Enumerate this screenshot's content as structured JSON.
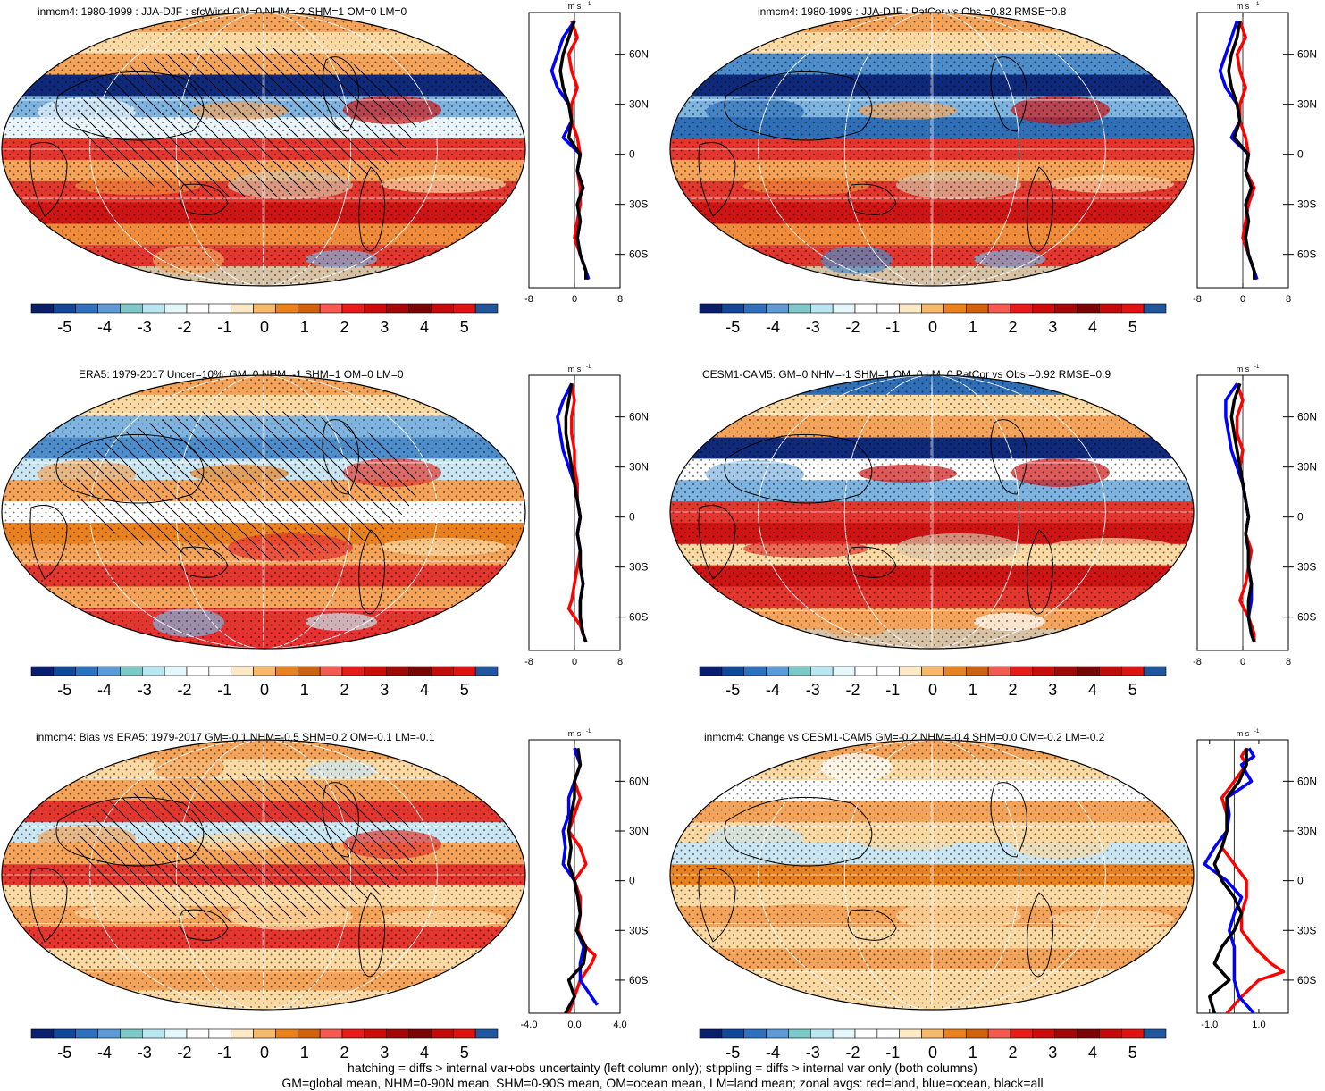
{
  "colorbar": {
    "colors": [
      "#0a1e6e",
      "#12489a",
      "#2e72bf",
      "#5d9bd6",
      "#7ec9c8",
      "#b9e6ef",
      "#e4f7fb",
      "#ffffff",
      "#ffffff",
      "#fde9c5",
      "#f6b96b",
      "#e9821e",
      "#cf620f",
      "#f55a52",
      "#e81b1b",
      "#cc0b0b",
      "#a30808",
      "#7a0505",
      "#c40a0a",
      "#e01313",
      "#21559c"
    ],
    "labels": [
      "-5",
      "-4",
      "-3",
      "-2",
      "-1",
      "0",
      "1",
      "2",
      "3",
      "4",
      "5"
    ]
  },
  "panels": [
    {
      "title": "inmcm4: 1980-1999 : JJA-DJF : sfcWind GM=0 NHM=-2 SHM=1 OM=0 LM=0",
      "hatched": true,
      "zonal": {
        "unit_top": "m s",
        "unit_sup": "-1",
        "xticks": [
          "-8",
          "0",
          "8"
        ],
        "xlim": [
          -8,
          8
        ],
        "yticks": [
          "60N",
          "30N",
          "0",
          "30S",
          "60S"
        ],
        "series": [
          {
            "color": "#ff0000",
            "lat": [
              80,
              70,
              60,
              50,
              40,
              30,
              20,
              10,
              0,
              -10,
              -20,
              -30,
              -40,
              -50,
              -60,
              -70,
              -75
            ],
            "x": [
              -0.5,
              0.5,
              -1,
              -0.5,
              0.5,
              -0.5,
              -0.5,
              0.5,
              1,
              0.5,
              1,
              1,
              0.5,
              0,
              1,
              2,
              2
            ]
          },
          {
            "color": "#0000ff",
            "lat": [
              80,
              70,
              60,
              50,
              40,
              30,
              20,
              10,
              0,
              -10,
              -20,
              -30,
              -40,
              -50,
              -60,
              -70,
              -75
            ],
            "x": [
              0,
              -2,
              -3,
              -4,
              -3,
              -1,
              -0.5,
              -2,
              1,
              0.5,
              1.5,
              0.5,
              1,
              0.5,
              1,
              2,
              2.5
            ]
          },
          {
            "color": "#000000",
            "lat": [
              80,
              70,
              60,
              50,
              40,
              30,
              20,
              10,
              0,
              -10,
              -20,
              -30,
              -40,
              -50,
              -60,
              -70,
              -75
            ],
            "x": [
              0,
              -1,
              -2,
              -2.5,
              -2,
              -1,
              -0.5,
              -1,
              1,
              0.5,
              1.5,
              0.5,
              1,
              0.5,
              1,
              2,
              2
            ]
          }
        ]
      }
    },
    {
      "title": "inmcm4: 1980-1999 : JJA-DJF : PatCor vs Obs =0.82 RMSE=0.8",
      "hatched": false,
      "zonal": {
        "unit_top": "m s",
        "unit_sup": "-1",
        "xticks": [
          "-8",
          "0",
          "8"
        ],
        "xlim": [
          -8,
          8
        ],
        "yticks": [
          "60N",
          "30N",
          "0",
          "30S",
          "60S"
        ],
        "series": [
          {
            "color": "#ff0000",
            "lat": [
              80,
              70,
              60,
              50,
              40,
              30,
              20,
              10,
              0,
              -10,
              -20,
              -30,
              -40,
              -50,
              -60,
              -70,
              -75
            ],
            "x": [
              -0.5,
              0.5,
              -1,
              -0.5,
              0.5,
              -0.5,
              -0.5,
              0.5,
              1,
              0.5,
              2,
              1,
              0.5,
              0,
              1,
              2,
              2
            ]
          },
          {
            "color": "#0000ff",
            "lat": [
              80,
              70,
              60,
              50,
              40,
              30,
              20,
              10,
              0,
              -10,
              -20,
              -30,
              -40,
              -50,
              -60,
              -70,
              -75
            ],
            "x": [
              -1,
              -2,
              -3,
              -4,
              -3,
              -1,
              -0.5,
              -2,
              1,
              0.5,
              1.5,
              0.5,
              1,
              0.5,
              1,
              2,
              2.5
            ]
          },
          {
            "color": "#000000",
            "lat": [
              80,
              70,
              60,
              50,
              40,
              30,
              20,
              10,
              0,
              -10,
              -20,
              -30,
              -40,
              -50,
              -60,
              -70,
              -75
            ],
            "x": [
              -0.5,
              -1,
              -2,
              -2.5,
              -2,
              -1,
              -0.5,
              -1.5,
              1,
              0.5,
              1.5,
              0.5,
              1,
              0.5,
              1,
              2,
              2
            ]
          }
        ]
      }
    },
    {
      "title": "ERA5: 1979-2017 Uncer=10%: GM=0 NHM=-1 SHM=1 OM=0 LM=0",
      "hatched": true,
      "zonal": {
        "unit_top": "m s",
        "unit_sup": "-1",
        "xticks": [
          "-8",
          "0",
          "8"
        ],
        "xlim": [
          -8,
          8
        ],
        "yticks": [
          "60N",
          "30N",
          "0",
          "30S",
          "60S"
        ],
        "series": [
          {
            "color": "#ff0000",
            "lat": [
              80,
              70,
              60,
              50,
              40,
              30,
              20,
              10,
              0,
              -10,
              -20,
              -30,
              -40,
              -50,
              -55,
              -65,
              -75
            ],
            "x": [
              -0.5,
              0,
              -0.5,
              -0.5,
              0,
              0,
              0.5,
              0.5,
              1,
              0.5,
              1,
              0.5,
              0,
              -0.5,
              -1,
              1,
              2
            ]
          },
          {
            "color": "#0000ff",
            "lat": [
              80,
              70,
              60,
              50,
              40,
              30,
              20,
              10,
              0,
              -10,
              -20,
              -30,
              -40,
              -50,
              -60,
              -70,
              -75
            ],
            "x": [
              -0.5,
              -2,
              -3,
              -2.5,
              -2,
              -1,
              0,
              0.5,
              1,
              0.5,
              1,
              1,
              1.5,
              1,
              1,
              1.5,
              2
            ]
          },
          {
            "color": "#000000",
            "lat": [
              80,
              70,
              60,
              50,
              40,
              30,
              20,
              10,
              0,
              -10,
              -20,
              -30,
              -40,
              -50,
              -60,
              -70,
              -75
            ],
            "x": [
              -0.5,
              -1,
              -1.5,
              -1.5,
              -1,
              -0.5,
              0,
              0.5,
              1,
              0.5,
              1,
              1,
              1.5,
              1,
              1,
              1.5,
              2
            ]
          }
        ]
      }
    },
    {
      "title": "CESM1-CAM5: GM=0 NHM=-1 SHM=1 OM=0 LM=0 PatCor vs Obs =0.92 RMSE=0.9",
      "hatched": false,
      "zonal": {
        "unit_top": "m s",
        "unit_sup": "-1",
        "xticks": [
          "-8",
          "0",
          "8"
        ],
        "xlim": [
          -8,
          8
        ],
        "yticks": [
          "60N",
          "30N",
          "0",
          "30S",
          "60S"
        ],
        "series": [
          {
            "color": "#ff0000",
            "lat": [
              80,
              70,
              60,
              50,
              40,
              30,
              20,
              10,
              0,
              -10,
              -20,
              -30,
              -40,
              -50,
              -60,
              -70,
              -75
            ],
            "x": [
              -1,
              0,
              -1,
              -1,
              0,
              -0.5,
              0,
              0.5,
              1,
              0.5,
              1.5,
              1,
              0.5,
              -0.5,
              1,
              2,
              2
            ]
          },
          {
            "color": "#0000ff",
            "lat": [
              80,
              70,
              60,
              50,
              40,
              30,
              20,
              10,
              0,
              -10,
              -20,
              -30,
              -40,
              -50,
              -60,
              -70,
              -75
            ],
            "x": [
              -1,
              -3,
              -3,
              -2.5,
              -2,
              -1,
              0,
              0.5,
              1,
              0.5,
              1,
              1,
              1.5,
              1.5,
              1,
              1.5,
              2
            ]
          },
          {
            "color": "#000000",
            "lat": [
              80,
              70,
              60,
              50,
              40,
              30,
              20,
              10,
              0,
              -10,
              -20,
              -30,
              -40,
              -50,
              -60,
              -70,
              -75
            ],
            "x": [
              -0.5,
              -1.5,
              -2,
              -1.5,
              -1,
              -0.5,
              0,
              0.5,
              1,
              0.5,
              1,
              1,
              1.5,
              1,
              1,
              1.5,
              2
            ]
          }
        ]
      }
    },
    {
      "title": "inmcm4: Bias vs ERA5: 1979-2017 GM=-0.1 NHM=-0.5 SHM=0.2 OM=-0.1 LM=-0.1",
      "hatched": true,
      "zonal": {
        "unit_top": "m s",
        "unit_sup": "-1",
        "xticks": [
          "-4.0",
          "0.0",
          "4.0"
        ],
        "xlim": [
          -4,
          4
        ],
        "yticks": [
          "60N",
          "30N",
          "0",
          "30S",
          "60S"
        ],
        "series": [
          {
            "color": "#ff0000",
            "lat": [
              80,
              70,
              60,
              50,
              40,
              30,
              20,
              10,
              0,
              -10,
              -20,
              -30,
              -40,
              -45,
              -50,
              -60,
              -70,
              -80
            ],
            "x": [
              0,
              0.5,
              0,
              0.5,
              0,
              -0.5,
              0.5,
              1,
              0,
              0.5,
              0.5,
              0.3,
              1,
              1.8,
              1.5,
              0.5,
              0,
              -0.5
            ]
          },
          {
            "color": "#0000ff",
            "lat": [
              80,
              70,
              60,
              50,
              40,
              30,
              20,
              10,
              0,
              -10,
              -20,
              -30,
              -40,
              -50,
              -60,
              -70,
              -75
            ],
            "x": [
              0,
              0.5,
              0,
              -0.5,
              -0.5,
              -1,
              -0.8,
              -1,
              0,
              0.3,
              0.5,
              0.2,
              0.8,
              0.5,
              0.5,
              1.5,
              2
            ]
          },
          {
            "color": "#000000",
            "lat": [
              80,
              70,
              60,
              50,
              40,
              30,
              20,
              10,
              0,
              -10,
              -20,
              -30,
              -40,
              -50,
              -60,
              -70,
              -80
            ],
            "x": [
              0.3,
              0.5,
              0,
              0,
              -0.3,
              -0.5,
              -0.3,
              -0.5,
              0,
              0.3,
              0.5,
              0.2,
              1,
              0.8,
              -0.5,
              0,
              -0.8
            ]
          }
        ]
      }
    },
    {
      "title": "inmcm4: Change vs CESM1-CAM5 GM=-0.2 NHM=-0.4 SHM=0.0 OM=-0.2 LM=-0.2",
      "hatched": false,
      "zonal": {
        "unit_top": "m s",
        "unit_sup": "-1",
        "xticks": [
          "-1.0",
          "1.0"
        ],
        "xlim": [
          -1.5,
          2.2
        ],
        "yticks": [
          "60N",
          "30N",
          "0",
          "30S",
          "60S"
        ],
        "series": [
          {
            "color": "#ff0000",
            "lat": [
              80,
              75,
              70,
              60,
              50,
              40,
              30,
              20,
              10,
              0,
              -10,
              -20,
              -30,
              -40,
              -50,
              -55,
              -60,
              -70,
              -80
            ],
            "x": [
              0.5,
              0.3,
              0.5,
              0,
              -0.5,
              -0.3,
              -0.3,
              -0.5,
              0,
              0.5,
              0.5,
              0.3,
              0.3,
              0.8,
              1.5,
              2,
              1,
              0.3,
              -0.3
            ]
          },
          {
            "color": "#0000ff",
            "lat": [
              80,
              75,
              70,
              60,
              50,
              40,
              30,
              20,
              10,
              0,
              -10,
              -20,
              -30,
              -40,
              -50,
              -60,
              -70,
              -80
            ],
            "x": [
              0.6,
              0.8,
              0.3,
              0.7,
              -0.3,
              -0.2,
              -0.3,
              -0.8,
              -1.2,
              -0.3,
              0.3,
              0,
              -0.2,
              0,
              0,
              0,
              0.2,
              0.8
            ]
          },
          {
            "color": "#000000",
            "lat": [
              80,
              70,
              60,
              50,
              40,
              30,
              20,
              10,
              0,
              -10,
              -20,
              -30,
              -40,
              -50,
              -60,
              -70,
              -80
            ],
            "x": [
              0.5,
              0.5,
              0.2,
              -0.3,
              -0.3,
              -0.3,
              -0.5,
              -0.8,
              -0.5,
              0,
              0.3,
              0,
              -0.5,
              -0.8,
              -0.2,
              -1,
              -0.8
            ]
          }
        ]
      }
    }
  ],
  "footer": {
    "line1": "hatching = diffs > internal var+obs uncertainty (left column only); stippling = diffs > internal var only (both columns)",
    "line2": "GM=global mean, NHM=0-90N mean, SHM=0-90S mean, OM=ocean mean, LM=land mean; zonal avgs: red=land, blue=ocean, black=all"
  }
}
